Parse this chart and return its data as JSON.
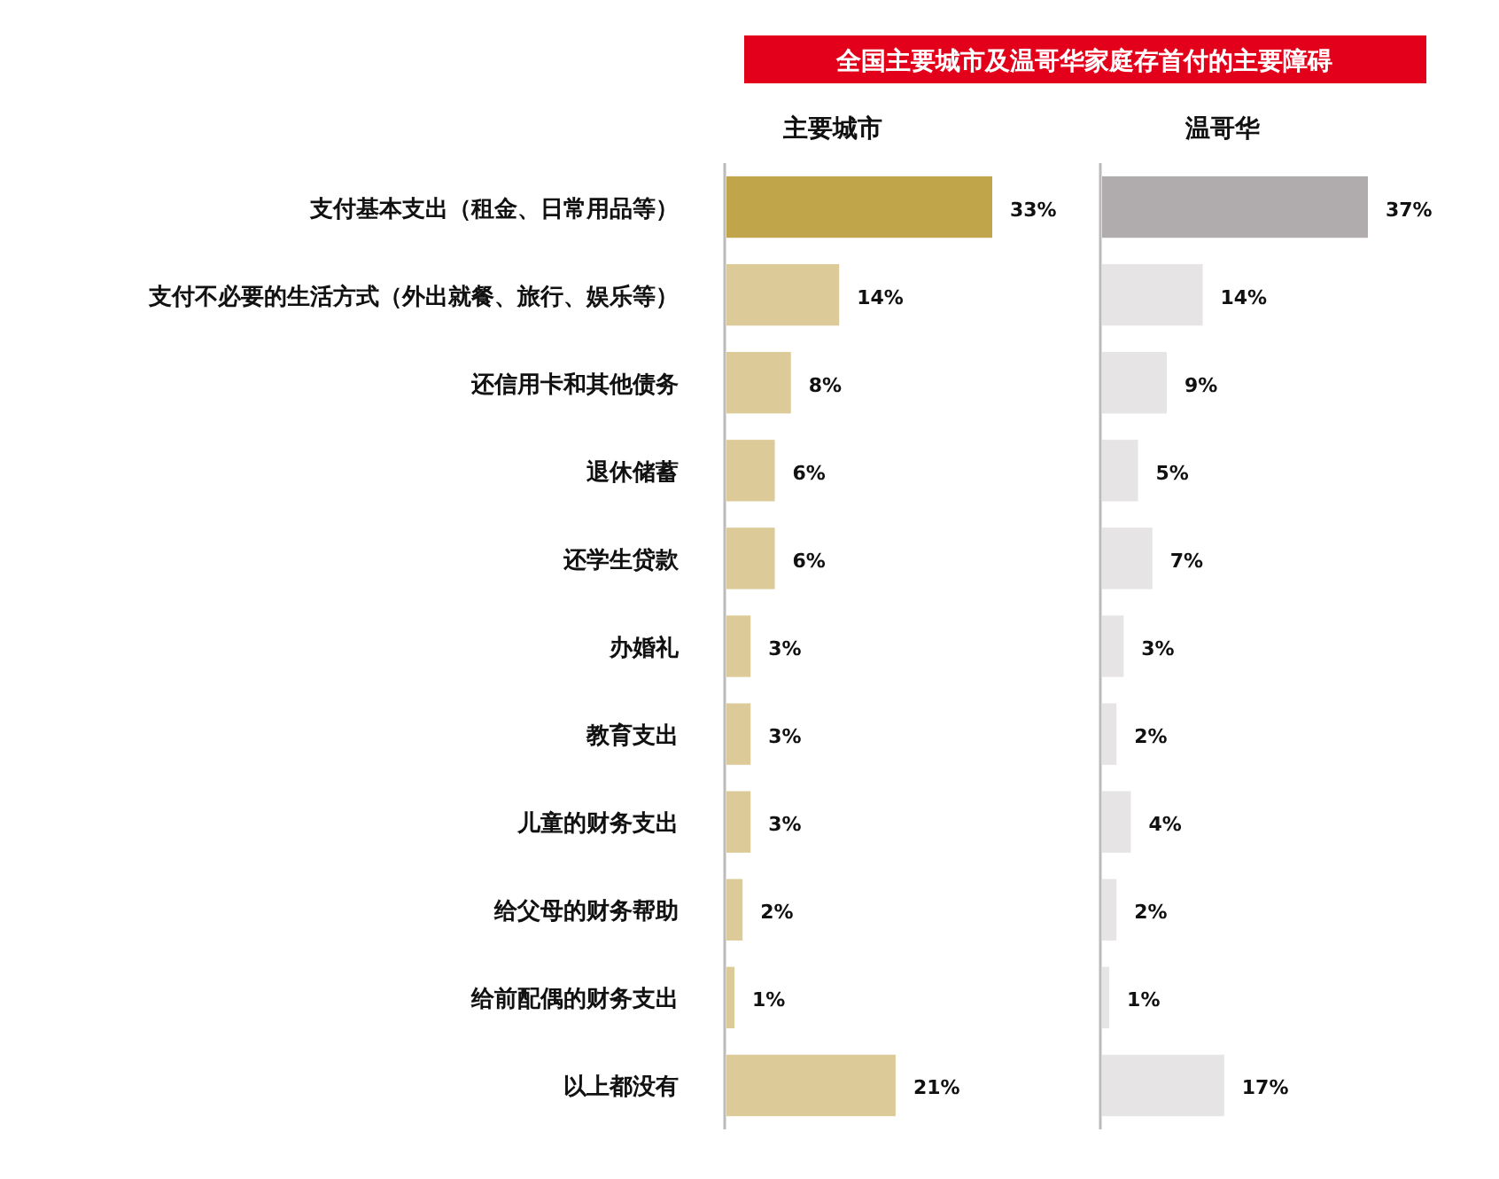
{
  "chart_data": [
    {
      "type": "bar",
      "orientation": "horizontal",
      "title": "全国主要城市及温哥华家庭存首付的主要障碍",
      "subtitle": "主要城市",
      "tick_labels": "y",
      "categories": [
        "支付基本支出（租金、日常用品等）",
        "支付不必要的生活方式（外出就餐、旅行、娱乐等）",
        "还信用卡和其他债务",
        "退休储蓄",
        "还学生贷款",
        "办婚礼",
        "教育支出",
        "儿童的财务支出",
        "给父母的财务帮助",
        "给前配偶的财务支出",
        "以上都没有"
      ],
      "values": [
        33,
        14,
        8,
        6,
        6,
        3,
        3,
        3,
        2,
        1,
        21
      ],
      "value_labels": [
        "33%",
        "14%",
        "8%",
        "6%",
        "6%",
        "3%",
        "3%",
        "3%",
        "2%",
        "1%",
        "21%"
      ],
      "colors": [
        "#c0a54b",
        "#dccb98",
        "#dccb98",
        "#dccb98",
        "#dccb98",
        "#dccb98",
        "#dccb98",
        "#dccb98",
        "#dccb98",
        "#dccb98",
        "#dccb98"
      ]
    },
    {
      "type": "bar",
      "orientation": "horizontal",
      "subtitle": "温哥华",
      "categories": [
        null,
        null,
        null,
        null,
        null,
        null,
        null,
        null,
        null,
        null,
        null
      ],
      "values": [
        37,
        14,
        9,
        5,
        7,
        3,
        2,
        4,
        2,
        1,
        17
      ],
      "value_labels": [
        "37%",
        "14%",
        "9%",
        "5%",
        "7%",
        "3%",
        "2%",
        "4%",
        "2%",
        "1%",
        "17%"
      ],
      "colors": [
        "#b0acad",
        "#e6e4e5",
        "#e6e4e5",
        "#e6e4e5",
        "#e6e4e5",
        "#e6e4e5",
        "#e6e4e5",
        "#e6e4e5",
        "#e6e4e5",
        "#e6e4e5",
        "#e6e4e5"
      ]
    }
  ]
}
